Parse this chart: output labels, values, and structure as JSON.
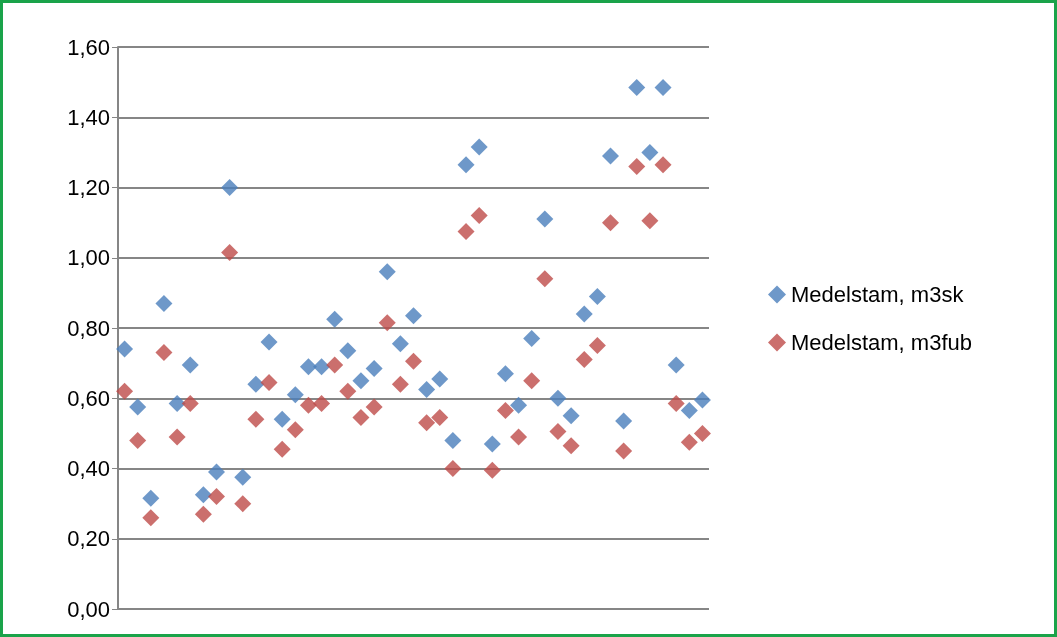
{
  "chart_data": {
    "type": "scatter",
    "categories": [
      null,
      null,
      null,
      null,
      null,
      null,
      null,
      null,
      null,
      null,
      null,
      null,
      null,
      null,
      null,
      null,
      null,
      null,
      null,
      null,
      null,
      null,
      null,
      null,
      null,
      null,
      null,
      null,
      null,
      null,
      null,
      null,
      null,
      null,
      null,
      null,
      null,
      null,
      null,
      null,
      null,
      null,
      null,
      null,
      null
    ],
    "series": [
      {
        "name": "Medelstam, m3sk",
        "color": "#4a7ebb",
        "values": [
          0.74,
          0.575,
          0.315,
          0.87,
          0.585,
          0.695,
          0.325,
          0.39,
          1.2,
          0.375,
          0.64,
          0.76,
          0.54,
          0.61,
          0.69,
          0.69,
          0.825,
          0.735,
          0.65,
          0.685,
          0.96,
          0.755,
          0.835,
          0.625,
          0.655,
          0.48,
          1.265,
          1.315,
          0.47,
          0.67,
          0.58,
          0.77,
          1.11,
          0.6,
          0.55,
          0.84,
          0.89,
          1.29,
          0.535,
          1.485,
          1.3,
          1.485,
          0.695,
          0.565,
          0.595
        ]
      },
      {
        "name": "Medelstam, m3fub",
        "color": "#be4b48",
        "values": [
          0.62,
          0.48,
          0.26,
          0.73,
          0.49,
          0.585,
          0.27,
          0.32,
          1.015,
          0.3,
          0.54,
          0.645,
          0.455,
          0.51,
          0.58,
          0.585,
          0.695,
          0.62,
          0.545,
          0.575,
          0.815,
          0.64,
          0.705,
          0.53,
          0.545,
          0.4,
          1.075,
          1.12,
          0.395,
          0.565,
          0.49,
          0.65,
          0.94,
          0.505,
          0.465,
          0.71,
          0.75,
          1.1,
          0.45,
          1.26,
          1.105,
          1.265,
          0.585,
          0.475,
          0.5
        ]
      }
    ],
    "ylim": [
      0,
      1.6
    ],
    "yticks": [
      {
        "value": 0,
        "label": "0,00"
      },
      {
        "value": 0.2,
        "label": "0,20"
      },
      {
        "value": 0.4,
        "label": "0,40"
      },
      {
        "value": 0.6,
        "label": "0,60"
      },
      {
        "value": 0.8,
        "label": "0,80"
      },
      {
        "value": 1,
        "label": "1,00"
      },
      {
        "value": 1.2,
        "label": "1,20"
      },
      {
        "value": 1.4,
        "label": "1,40"
      },
      {
        "value": 1.6,
        "label": "1,60"
      }
    ],
    "grid": "y",
    "legend": "right",
    "marker": "diamond",
    "tick_labels": "y"
  }
}
